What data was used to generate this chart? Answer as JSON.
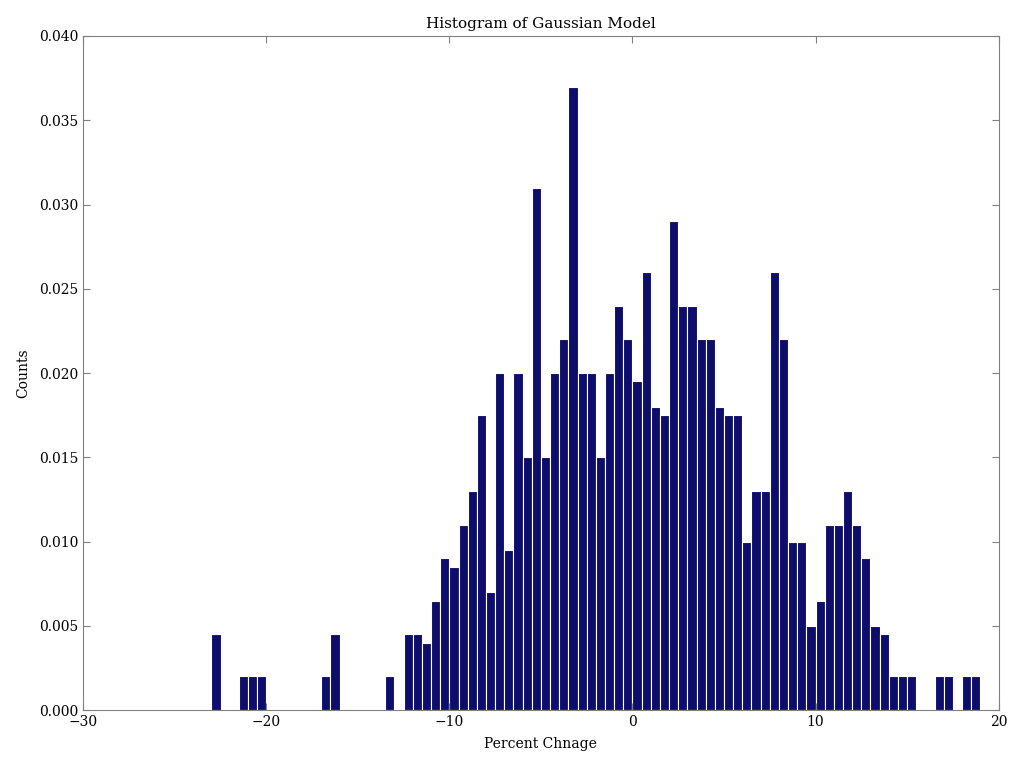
{
  "title": "Histogram of Gaussian Model",
  "xlabel": "Percent Chnage",
  "ylabel": "Counts",
  "bar_color": "#0d0d6b",
  "edge_color": "white",
  "xlim": [
    -30,
    20
  ],
  "ylim": [
    0,
    0.04
  ],
  "yticks": [
    0,
    0.005,
    0.01,
    0.015,
    0.02,
    0.025,
    0.03,
    0.035,
    0.04
  ],
  "xticks": [
    -30,
    -20,
    -10,
    0,
    10,
    20
  ],
  "background_color": "white",
  "title_fontsize": 11,
  "label_fontsize": 10,
  "bin_width": 0.5,
  "bins_left": [
    -23.0,
    -21.5,
    -21.0,
    -20.5,
    -17.0,
    -16.5,
    -13.5,
    -12.5,
    -12.0,
    -11.5,
    -11.0,
    -10.5,
    -10.0,
    -9.5,
    -9.0,
    -8.5,
    -8.0,
    -7.5,
    -7.0,
    -6.5,
    -6.0,
    -5.5,
    -5.0,
    -4.5,
    -4.0,
    -3.5,
    -3.0,
    -2.5,
    -2.0,
    -1.5,
    -1.0,
    -0.5,
    0.0,
    0.5,
    1.0,
    1.5,
    2.0,
    2.5,
    3.0,
    3.5,
    4.0,
    4.5,
    5.0,
    5.5,
    6.0,
    6.5,
    7.0,
    7.5,
    8.0,
    8.5,
    9.0,
    9.5,
    10.0,
    10.5,
    11.0,
    11.5,
    12.0,
    12.5,
    13.0,
    13.5,
    14.0,
    14.5,
    15.0,
    16.5,
    17.0,
    18.0,
    18.5
  ],
  "heights": [
    0.0045,
    0.002,
    0.002,
    0.002,
    0.002,
    0.0045,
    0.002,
    0.0045,
    0.0045,
    0.004,
    0.0065,
    0.009,
    0.0085,
    0.011,
    0.013,
    0.0175,
    0.007,
    0.02,
    0.0095,
    0.02,
    0.015,
    0.031,
    0.015,
    0.02,
    0.022,
    0.037,
    0.02,
    0.02,
    0.015,
    0.02,
    0.024,
    0.022,
    0.0195,
    0.026,
    0.018,
    0.0175,
    0.029,
    0.024,
    0.024,
    0.022,
    0.022,
    0.018,
    0.0175,
    0.0175,
    0.01,
    0.013,
    0.013,
    0.026,
    0.022,
    0.01,
    0.01,
    0.005,
    0.0065,
    0.011,
    0.011,
    0.013,
    0.011,
    0.009,
    0.005,
    0.0045,
    0.002,
    0.002,
    0.002,
    0.002,
    0.002,
    0.002,
    0.002
  ],
  "spine_color": "#808080",
  "tick_label_color": "#404040"
}
